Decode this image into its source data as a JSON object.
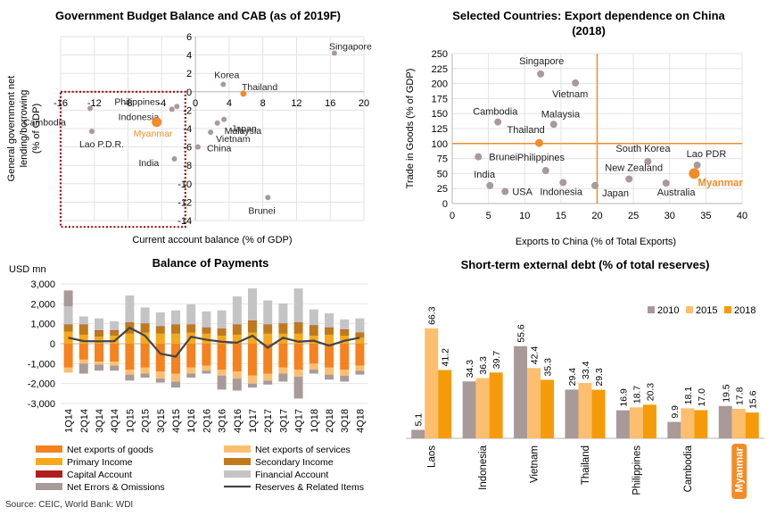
{
  "source": "Source: CEIC, World Bank: WDI",
  "chart_data": [
    {
      "type": "scatter",
      "title": "Government Budget Balance and CAB (as of 2019F)",
      "xlabel": "Current account balance (% of GDP)",
      "ylabel_lines": [
        "General government net",
        "lending/borrowing",
        "(% of GDP)"
      ],
      "xlim": [
        -16,
        20
      ],
      "ylim": [
        -14,
        6
      ],
      "xticks": [
        -16,
        -12,
        -8,
        -4,
        0,
        4,
        8,
        12,
        16,
        20
      ],
      "yticks": [
        6,
        4,
        2,
        0,
        -2,
        -4,
        -6,
        -8,
        -10,
        -12,
        -14
      ],
      "highlight_color": "#F28C28",
      "point_color": "#A89A99",
      "points": [
        {
          "label": "Singapore",
          "x": 16.5,
          "y": 4.2
        },
        {
          "label": "Korea",
          "x": 3.3,
          "y": 0.8
        },
        {
          "label": "Thailand",
          "x": 5.7,
          "y": -0.2,
          "highlight": true
        },
        {
          "label": "Philippines",
          "x": -2.2,
          "y": -1.6
        },
        {
          "label": "Indonesia",
          "x": -2.8,
          "y": -1.9
        },
        {
          "label": "Cambodia",
          "x": -12.5,
          "y": -1.8
        },
        {
          "label": "Myanmar",
          "x": -4.6,
          "y": -3.3,
          "highlight": true
        },
        {
          "label": "Japan",
          "x": 3.4,
          "y": -3.0
        },
        {
          "label": "Malaysia",
          "x": 2.6,
          "y": -3.4
        },
        {
          "label": "Vietnam",
          "x": 1.8,
          "y": -4.4
        },
        {
          "label": "Lao P.D.R.",
          "x": -12.3,
          "y": -4.3
        },
        {
          "label": "China",
          "x": 0.3,
          "y": -6.0
        },
        {
          "label": "India",
          "x": -2.5,
          "y": -7.3
        },
        {
          "label": "Brunei",
          "x": 8.6,
          "y": -11.5
        }
      ]
    },
    {
      "type": "scatter",
      "title_lines": [
        "Selected Countries: Export dependence on China",
        "(2018)"
      ],
      "xlabel": "Exports to China (% of Total Exports)",
      "ylabel": "Trade in Goods (% of GDP)",
      "xlim": [
        0,
        40
      ],
      "ylim": [
        0,
        250
      ],
      "xticks": [
        0,
        5,
        10,
        15,
        20,
        25,
        30,
        35,
        40
      ],
      "yticks": [
        250,
        225,
        200,
        175,
        150,
        125,
        100,
        75,
        50,
        25,
        0
      ],
      "reference_lines": {
        "x": 20,
        "y": 100
      },
      "points": [
        {
          "label": "Singapore",
          "x": 12.2,
          "y": 216
        },
        {
          "label": "Vietnam",
          "x": 17.0,
          "y": 201
        },
        {
          "label": "Cambodia",
          "x": 6.3,
          "y": 136
        },
        {
          "label": "Malaysia",
          "x": 14.0,
          "y": 132
        },
        {
          "label": "Thailand",
          "x": 12.0,
          "y": 101,
          "highlight": true
        },
        {
          "label": "South Korea",
          "x": 27.0,
          "y": 70
        },
        {
          "label": "Lao PDR",
          "x": 33.8,
          "y": 64
        },
        {
          "label": "Brunei",
          "x": 3.6,
          "y": 78
        },
        {
          "label": "Philippines",
          "x": 12.9,
          "y": 55
        },
        {
          "label": "Myanmar",
          "x": 33.4,
          "y": 50,
          "highlight": true,
          "big": true
        },
        {
          "label": "New Zealand",
          "x": 24.4,
          "y": 41
        },
        {
          "label": "India",
          "x": 5.2,
          "y": 30
        },
        {
          "label": "USA",
          "x": 7.3,
          "y": 20
        },
        {
          "label": "Indonesia",
          "x": 15.3,
          "y": 35
        },
        {
          "label": "Japan",
          "x": 19.7,
          "y": 30
        },
        {
          "label": "Australia",
          "x": 29.5,
          "y": 34
        }
      ]
    },
    {
      "type": "bar",
      "stacked": true,
      "title": "Balance of Payments",
      "yunit": "USD mn",
      "ylim": [
        -3000,
        3000
      ],
      "yticks": [
        "3,000",
        "2,000",
        "1,000",
        "0",
        "-1,000",
        "-2,000",
        "-3,000"
      ],
      "categories": [
        "1Q14",
        "2Q14",
        "3Q14",
        "4Q14",
        "1Q15",
        "2Q15",
        "3Q15",
        "4Q15",
        "1Q16",
        "2Q16",
        "3Q16",
        "4Q16",
        "1Q17",
        "2Q17",
        "3Q17",
        "4Q17",
        "1Q18",
        "2Q18",
        "3Q18",
        "4Q18"
      ],
      "xtick_labels": [
        "1Q14",
        "2Q14",
        "3Q14",
        "4Q14",
        "1Q15",
        "2Q15",
        "3Q15",
        "4Q15",
        "1Q16",
        "2Q16",
        "3Q16",
        "4Q16",
        "1Q17",
        "2Q17",
        "3Q17",
        "4Q17",
        "1Q18",
        "2Q18",
        "3Q18",
        "4Q18"
      ],
      "series": [
        {
          "name": "Net exports of goods",
          "color": "#F5821F",
          "values": [
            -1200,
            -800,
            -900,
            -900,
            -1300,
            -1200,
            -1400,
            -1500,
            -1200,
            -1100,
            -1300,
            -1400,
            -1600,
            -1500,
            -1200,
            -1300,
            -1000,
            -1200,
            -1300,
            -1100
          ]
        },
        {
          "name": "Net exports of services",
          "color": "#FDBF6F",
          "values": [
            -250,
            -200,
            -150,
            -200,
            -250,
            -300,
            -350,
            -400,
            -300,
            -250,
            -300,
            -350,
            -400,
            -350,
            -300,
            -350,
            -300,
            -350,
            -300,
            -250
          ]
        },
        {
          "name": "Primary Income",
          "color": "#F7A81B",
          "values": [
            600,
            450,
            350,
            400,
            500,
            550,
            500,
            500,
            550,
            500,
            400,
            450,
            550,
            500,
            500,
            500,
            400,
            450,
            400,
            300
          ]
        },
        {
          "name": "Secondary Income",
          "color": "#C07A1A",
          "values": [
            350,
            500,
            300,
            250,
            550,
            450,
            350,
            450,
            400,
            300,
            350,
            500,
            600,
            450,
            500,
            550,
            500,
            350,
            300,
            250
          ]
        },
        {
          "name": "Capital Account",
          "color": "#B01E1E",
          "values": [
            20,
            20,
            20,
            20,
            20,
            20,
            20,
            20,
            20,
            20,
            20,
            20,
            20,
            20,
            20,
            20,
            20,
            20,
            20,
            20
          ]
        },
        {
          "name": "Financial Account",
          "color": "#C4C4C4",
          "values": [
            900,
            400,
            600,
            450,
            1350,
            800,
            700,
            700,
            1000,
            800,
            900,
            1400,
            1600,
            1200,
            1000,
            1700,
            800,
            700,
            500,
            700
          ]
        },
        {
          "name": "Net Errors & Omissions",
          "color": "#A89A99",
          "values": [
            800,
            -500,
            -300,
            -250,
            -300,
            -200,
            -200,
            -300,
            -200,
            -150,
            -700,
            -600,
            -200,
            -200,
            -400,
            -1100,
            -200,
            -250,
            -300,
            -200
          ]
        },
        {
          "name": "Reserves & Related Items",
          "color": "#444444",
          "type": "line",
          "values": [
            300,
            130,
            120,
            130,
            800,
            400,
            -500,
            -650,
            350,
            200,
            100,
            50,
            400,
            -200,
            300,
            100,
            150,
            -100,
            150,
            300
          ]
        }
      ]
    },
    {
      "type": "bar",
      "title": "Short-term external debt (% of total reserves)",
      "categories": [
        "Laos",
        "Indonesia",
        "Vietnam",
        "Thailand",
        "Philippines",
        "Cambodia",
        "Myanmar"
      ],
      "highlight_category": "Myanmar",
      "ylim": [
        0,
        70
      ],
      "series": [
        {
          "name": "2010",
          "color": "#A89A99",
          "values": [
            5.1,
            34.3,
            55.6,
            29.4,
            16.9,
            9.9,
            19.5
          ],
          "labels": [
            "5.1",
            "34.3",
            "55.6",
            "29.4",
            "16.9",
            "9.9",
            "19.5"
          ]
        },
        {
          "name": "2015",
          "color": "#FDBF6F",
          "values": [
            66.3,
            36.3,
            42.4,
            33.4,
            18.7,
            18.1,
            17.8
          ],
          "labels": [
            "66.3",
            "36.3",
            "42.4",
            "33.4",
            "18.7",
            "18.1",
            "17.8"
          ]
        },
        {
          "name": "2018",
          "color": "#F59B0A",
          "values": [
            41.2,
            39.7,
            35.3,
            29.3,
            20.3,
            17.0,
            15.6
          ],
          "labels": [
            "41.2",
            "39.7",
            "35.3",
            "29.3",
            "20.3",
            "17.0",
            "15.6"
          ]
        }
      ]
    }
  ]
}
